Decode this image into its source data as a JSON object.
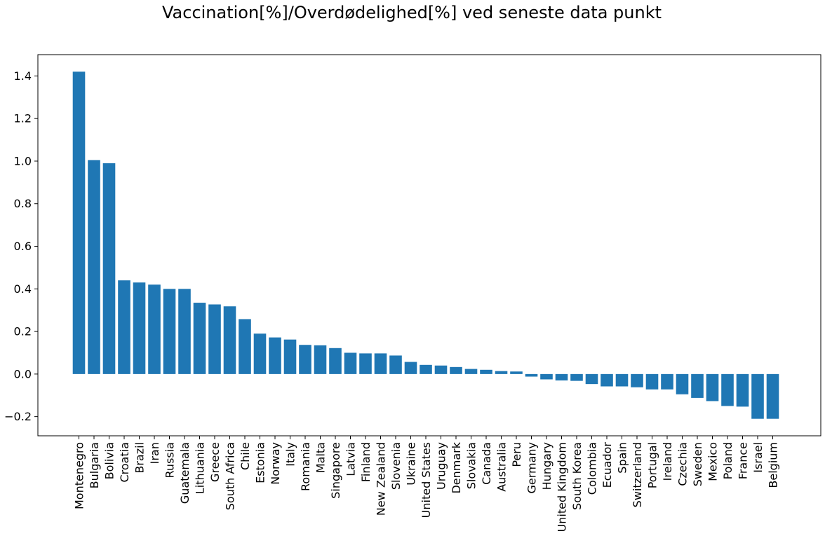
{
  "chart_data": {
    "type": "bar",
    "title": "Vaccination[%]/Overdødelighed[%] ved seneste data punkt",
    "xlabel": "",
    "ylabel": "",
    "ylim": [
      -0.29,
      1.5
    ],
    "yticks": [
      -0.2,
      0.0,
      0.2,
      0.4,
      0.6,
      0.8,
      1.0,
      1.2,
      1.4
    ],
    "ytick_labels": [
      "−0.2",
      "0.0",
      "0.2",
      "0.4",
      "0.6",
      "0.8",
      "1.0",
      "1.2",
      "1.4"
    ],
    "grid": false,
    "legend": "none",
    "bar_color": "#1f77b4",
    "categories": [
      "Montenegro",
      "Bulgaria",
      "Bolivia",
      "Croatia",
      "Brazil",
      "Iran",
      "Russia",
      "Guatemala",
      "Lithuania",
      "Greece",
      "South Africa",
      "Chile",
      "Estonia",
      "Norway",
      "Italy",
      "Romania",
      "Malta",
      "Singapore",
      "Latvia",
      "Finland",
      "New Zealand",
      "Slovenia",
      "Ukraine",
      "United States",
      "Uruguay",
      "Denmark",
      "Slovakia",
      "Canada",
      "Australia",
      "Peru",
      "Germany",
      "Hungary",
      "United Kingdom",
      "South Korea",
      "Colombia",
      "Ecuador",
      "Spain",
      "Switzerland",
      "Portugal",
      "Ireland",
      "Czechia",
      "Sweden",
      "Mexico",
      "Poland",
      "France",
      "Israel",
      "Belgium"
    ],
    "values": [
      1.42,
      1.005,
      0.99,
      0.44,
      0.43,
      0.42,
      0.4,
      0.4,
      0.335,
      0.327,
      0.318,
      0.258,
      0.19,
      0.172,
      0.162,
      0.137,
      0.135,
      0.122,
      0.1,
      0.097,
      0.097,
      0.087,
      0.057,
      0.043,
      0.04,
      0.033,
      0.024,
      0.02,
      0.014,
      0.012,
      -0.012,
      -0.025,
      -0.03,
      -0.032,
      -0.047,
      -0.058,
      -0.058,
      -0.062,
      -0.072,
      -0.072,
      -0.095,
      -0.112,
      -0.127,
      -0.15,
      -0.153,
      -0.21,
      -0.21
    ]
  }
}
